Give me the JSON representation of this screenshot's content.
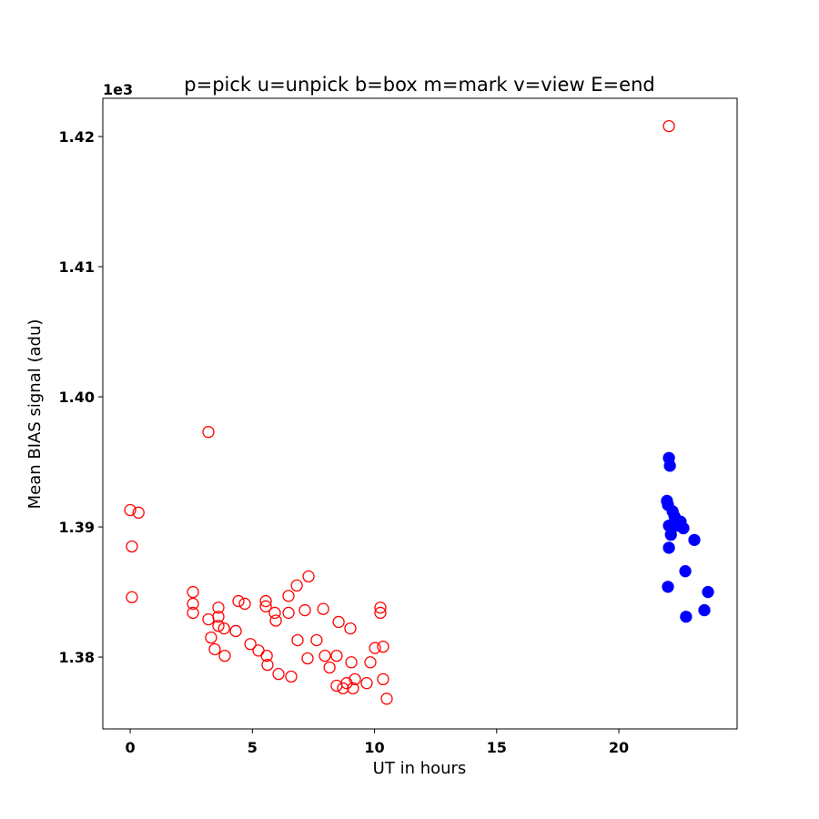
{
  "chart_data": {
    "type": "scatter",
    "title": "p=pick u=unpick b=box m=mark v=view E=end",
    "x_label": "UT in hours",
    "y_label": "Mean BIAS signal (adu)",
    "y_offset_label": "1e3",
    "xlim": [
      -1.12,
      24.84
    ],
    "ylim": [
      1374.48,
      1422.94
    ],
    "xticks": [
      0,
      5,
      10,
      15,
      20
    ],
    "yticks": [
      {
        "value": 1380,
        "label": "1.38"
      },
      {
        "value": 1390,
        "label": "1.39"
      },
      {
        "value": 1400,
        "label": "1.40"
      },
      {
        "value": 1410,
        "label": "1.41"
      },
      {
        "value": 1420,
        "label": "1.42"
      }
    ],
    "grid": false,
    "series": [
      {
        "color": "#ff0000",
        "filled": false,
        "x": [
          0.0,
          0.07,
          0.07,
          0.34,
          3.2,
          22.05,
          2.57,
          2.57,
          2.57,
          3.2,
          3.31,
          3.46,
          3.61,
          3.61,
          3.61,
          3.84,
          3.87,
          4.32,
          4.43,
          4.69,
          4.92,
          5.25,
          5.55,
          5.55,
          5.59,
          5.62,
          5.92,
          5.96,
          6.07,
          6.48,
          6.48,
          6.59,
          6.82,
          6.85,
          7.15,
          7.26,
          7.3,
          7.63,
          7.9,
          7.97,
          8.16,
          8.45,
          8.53,
          8.45,
          8.71,
          8.86,
          9.01,
          9.05,
          9.12,
          9.2,
          9.68,
          9.83,
          10.02,
          10.24,
          10.24,
          10.35,
          10.35,
          10.5
        ],
        "values": [
          1391.3,
          1388.5,
          1384.6,
          1391.1,
          1397.3,
          1420.8,
          1385.0,
          1384.1,
          1383.4,
          1382.9,
          1381.5,
          1380.6,
          1383.8,
          1383.1,
          1382.4,
          1382.2,
          1380.1,
          1382.0,
          1384.3,
          1384.1,
          1381.0,
          1380.5,
          1384.3,
          1383.9,
          1380.1,
          1379.4,
          1383.4,
          1382.8,
          1378.7,
          1383.4,
          1384.7,
          1378.5,
          1385.5,
          1381.3,
          1383.6,
          1379.9,
          1386.2,
          1381.3,
          1383.7,
          1380.1,
          1379.2,
          1380.1,
          1382.7,
          1377.8,
          1377.6,
          1378.0,
          1382.2,
          1379.6,
          1377.6,
          1378.3,
          1378.0,
          1379.6,
          1380.7,
          1383.8,
          1383.4,
          1380.8,
          1378.3,
          1376.8
        ]
      },
      {
        "color": "#0000ff",
        "filled": true,
        "x": [
          22.05,
          22.09,
          21.97,
          22.01,
          22.2,
          22.28,
          22.05,
          22.38,
          22.53,
          22.64,
          22.13,
          22.05,
          23.09,
          22.72,
          22.01,
          22.75,
          23.5,
          23.65
        ],
        "values": [
          1395.3,
          1394.7,
          1392.0,
          1391.7,
          1391.2,
          1390.8,
          1390.1,
          1390.1,
          1390.4,
          1389.9,
          1389.4,
          1388.4,
          1389.0,
          1386.6,
          1385.4,
          1383.1,
          1383.6,
          1385.0
        ]
      }
    ]
  }
}
